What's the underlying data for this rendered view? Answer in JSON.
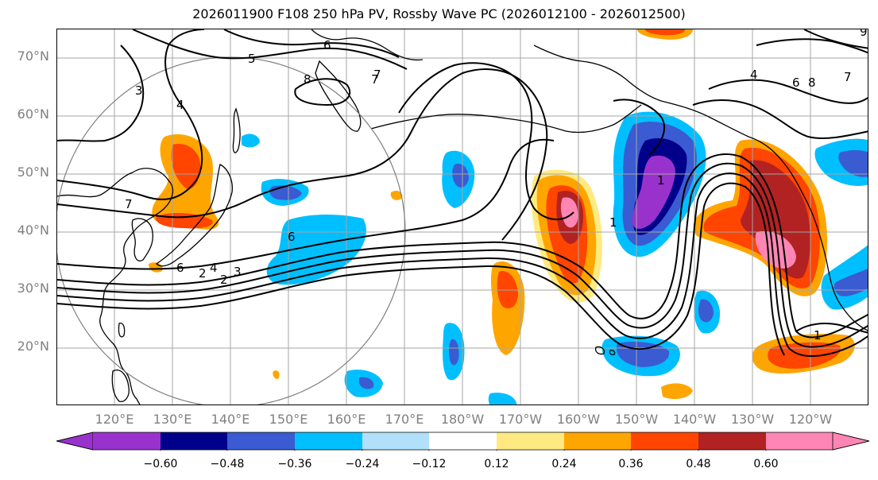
{
  "title": "2026011900 F108 250 hPa PV, Rossby Wave PC (2026012100 - 2026012500)",
  "map": {
    "lat_labels": [
      "70°N",
      "60°N",
      "50°N",
      "40°N",
      "30°N",
      "20°N"
    ],
    "lon_labels": [
      "120°E",
      "130°E",
      "140°E",
      "150°E",
      "160°E",
      "170°E",
      "180°W",
      "170°W",
      "160°W",
      "150°W",
      "140°W",
      "130°W",
      "120°W"
    ],
    "contour_labels": [
      "6",
      "5",
      "8",
      "7",
      "3",
      "4",
      "7",
      "6",
      "2",
      "3",
      "6",
      "2",
      "4",
      "1",
      "1",
      "1",
      "7",
      "4",
      "6",
      "8",
      "9",
      "7"
    ],
    "contour_levels": [
      "1",
      "2",
      "3",
      "4",
      "5",
      "6",
      "7",
      "8"
    ],
    "colors": {
      "grid": "#a6a6a6",
      "circle": "#808080",
      "contour": "#000000",
      "label_text": "#7f7f7f"
    }
  },
  "colorbar": {
    "ticks": [
      "−0.60",
      "−0.48",
      "−0.36",
      "−0.24",
      "−0.12",
      "0.12",
      "0.24",
      "0.36",
      "0.48",
      "0.60"
    ],
    "colors": [
      "#9932cc",
      "#00008b",
      "#3a5bd1",
      "#00bfff",
      "#b0e0fa",
      "#ffffff",
      "#ffea82",
      "#ffa500",
      "#ff4500",
      "#b22222",
      "#ff86b4"
    ]
  }
}
